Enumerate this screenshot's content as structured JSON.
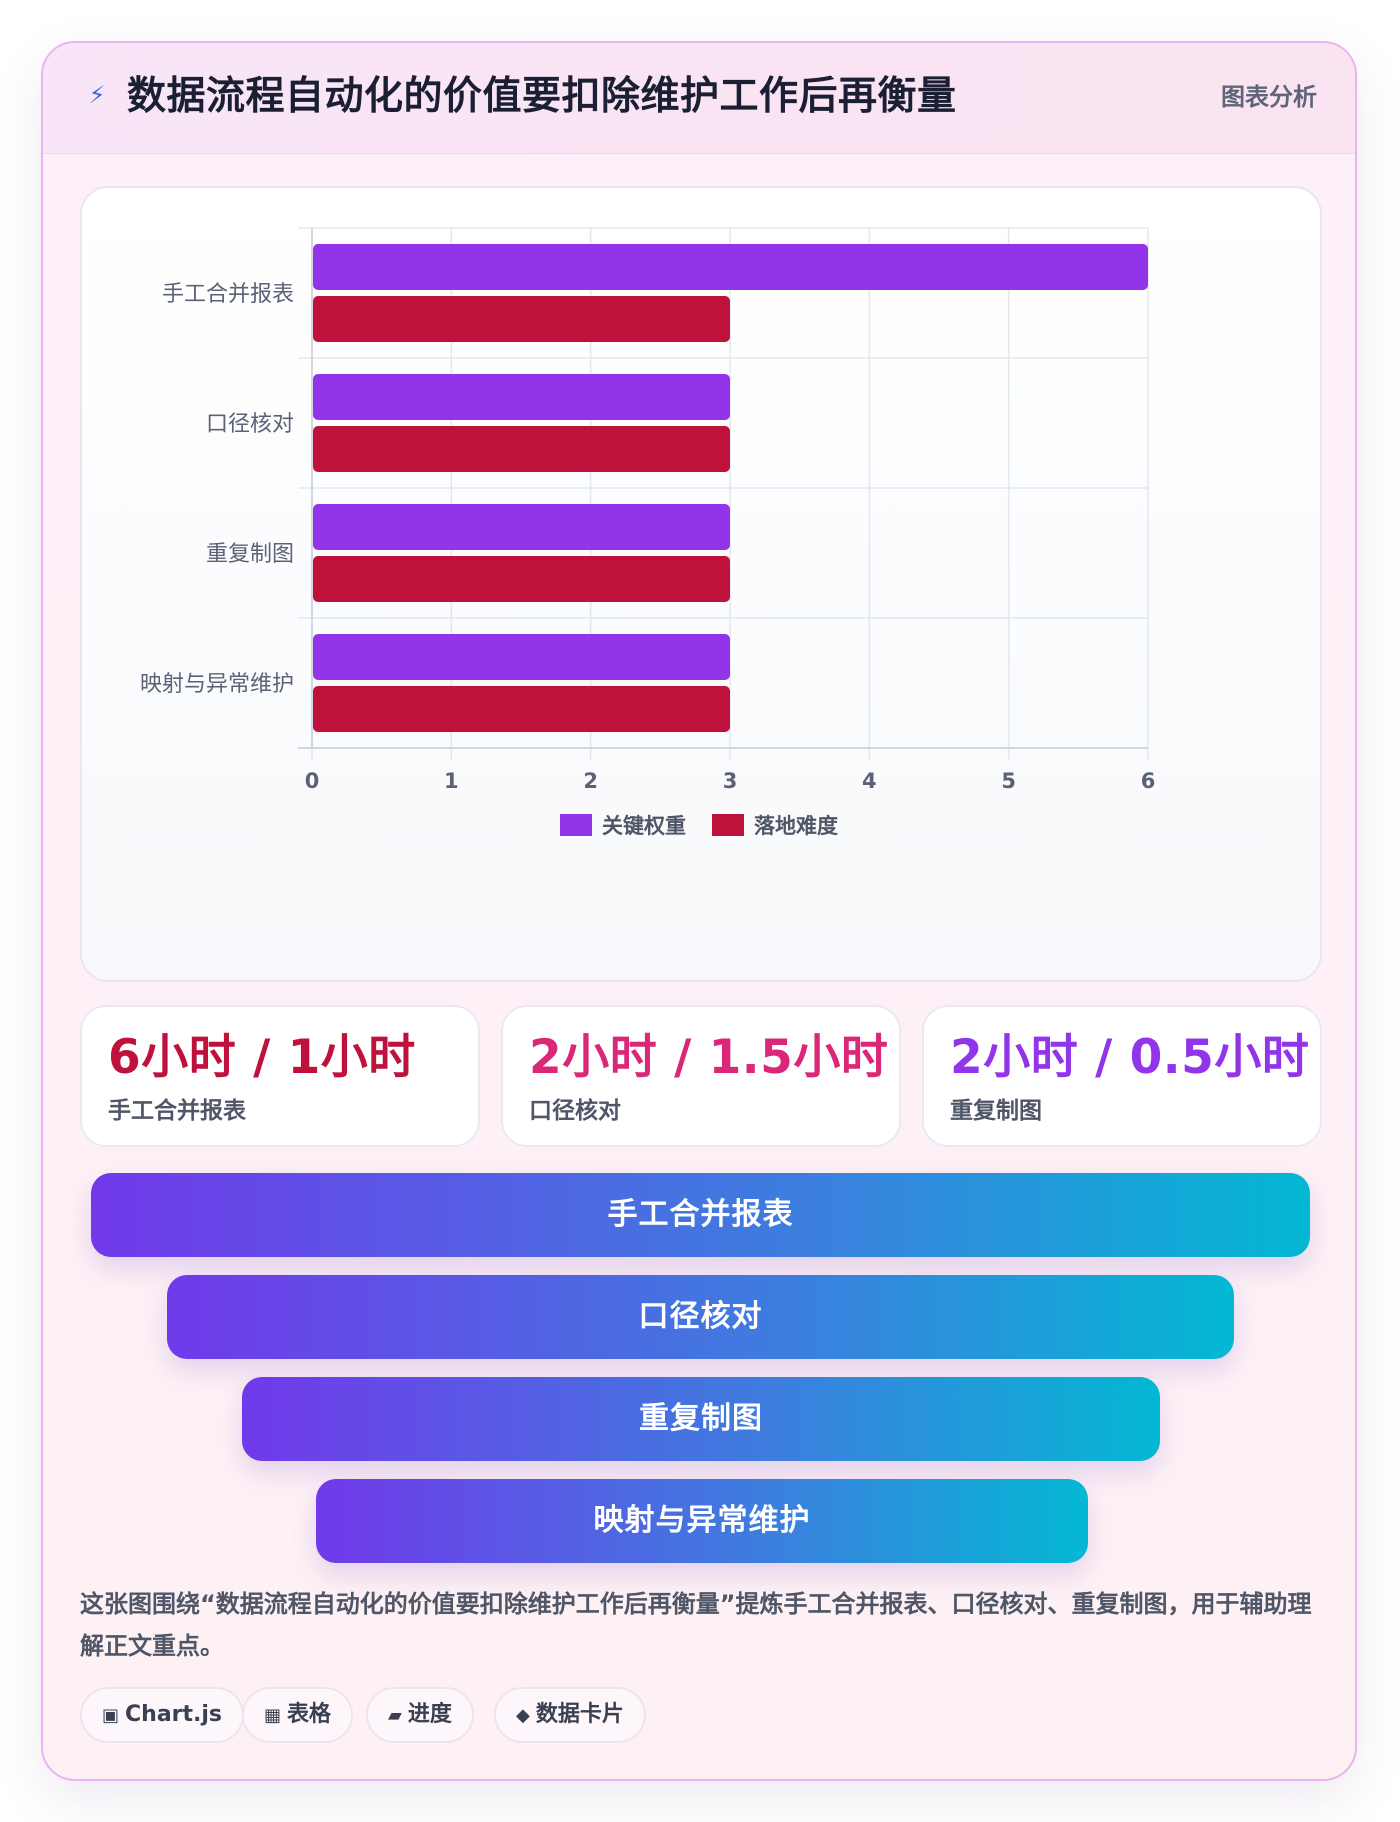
{
  "header": {
    "icon": "lightning-icon",
    "title": "数据流程自动化的价值要扣除维护工作后再衡量",
    "badge": "图表分析"
  },
  "chart_data": {
    "type": "bar",
    "orientation": "horizontal",
    "categories": [
      "手工合并报表",
      "口径核对",
      "重复制图",
      "映射与异常维护"
    ],
    "series": [
      {
        "name": "关键权重",
        "values": [
          6,
          3,
          3,
          3
        ],
        "color": "#9234ea"
      },
      {
        "name": "落地难度",
        "values": [
          3,
          3,
          3,
          3
        ],
        "color": "#be123c"
      }
    ],
    "xlim": [
      0,
      6
    ],
    "xticks": [
      0,
      1,
      2,
      3,
      4,
      5,
      6
    ],
    "grid": true,
    "legend": "bottom"
  },
  "stats": [
    {
      "value": "6小时 / 1小时",
      "label": "手工合并报表",
      "color": "#be123c"
    },
    {
      "value": "2小时 / 1.5小时",
      "label": "口径核对",
      "color": "#db2777"
    },
    {
      "value": "2小时 / 0.5小时",
      "label": "重复制图",
      "color": "#9234ea"
    }
  ],
  "funnel": [
    "手工合并报表",
    "口径核对",
    "重复制图",
    "映射与异常维护"
  ],
  "description": "这张图围绕“数据流程自动化的价值要扣除维护工作后再衡量”提炼手工合并报表、口径核对、重复制图，用于辅助理解正文重点。",
  "tags": [
    {
      "icon": "chip-icon",
      "glyph": "▣",
      "label": "Chart.js"
    },
    {
      "icon": "table-icon",
      "glyph": "▦",
      "label": "表格"
    },
    {
      "icon": "progress-icon",
      "glyph": "▰",
      "label": "进度"
    },
    {
      "icon": "diamond-icon",
      "glyph": "◆",
      "label": "数据卡片"
    }
  ]
}
